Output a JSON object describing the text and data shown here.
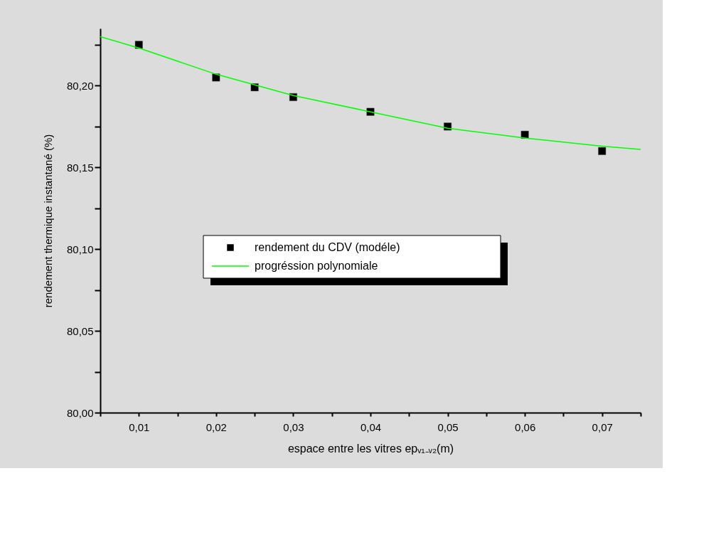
{
  "chart_data": {
    "type": "scatter",
    "xlabel": "espace entre les vitres epᵥ₁₋ᵥ₂(m)",
    "ylabel": "rendement  thermique instantané      (%)",
    "series": [
      {
        "name": "rendement du  CDV (modéle)",
        "color": "#000000",
        "marker": "square",
        "x": [
          0.01,
          0.02,
          0.025,
          0.03,
          0.04,
          0.05,
          0.06,
          0.07
        ],
        "values": [
          80.225,
          80.205,
          80.199,
          80.193,
          80.184,
          80.175,
          80.17,
          80.16
        ]
      },
      {
        "name": "progréssion polynomiale",
        "type": "line",
        "color": "#00ff00",
        "marker": "none",
        "line_style": "solid",
        "x": [
          0.005,
          0.01,
          0.02,
          0.03,
          0.04,
          0.05,
          0.06,
          0.07,
          0.075
        ],
        "values": [
          80.23,
          80.223,
          80.207,
          80.194,
          80.184,
          80.174,
          80.168,
          80.163,
          80.161
        ]
      }
    ],
    "xlim": [
      0.005,
      0.075
    ],
    "xticks": [
      {
        "value": 0.005,
        "label": null
      },
      {
        "value": 0.01,
        "label": "0,01"
      },
      {
        "value": 0.015,
        "label": null
      },
      {
        "value": 0.02,
        "label": "0,02"
      },
      {
        "value": 0.025,
        "label": null
      },
      {
        "value": 0.03,
        "label": "0,03"
      },
      {
        "value": 0.035,
        "label": null
      },
      {
        "value": 0.04,
        "label": "0,04"
      },
      {
        "value": 0.045,
        "label": null
      },
      {
        "value": 0.05,
        "label": "0,05"
      },
      {
        "value": 0.055,
        "label": null
      },
      {
        "value": 0.06,
        "label": "0,06"
      },
      {
        "value": 0.065,
        "label": null
      },
      {
        "value": 0.07,
        "label": "0,07"
      },
      {
        "value": 0.075,
        "label": null
      }
    ],
    "ylim": [
      80.0,
      80.235
    ],
    "yticks": [
      {
        "value": 80.0,
        "label": "80,00"
      },
      {
        "value": 80.025,
        "label": null
      },
      {
        "value": 80.05,
        "label": "80,05"
      },
      {
        "value": 80.075,
        "label": null
      },
      {
        "value": 80.1,
        "label": "80,10"
      },
      {
        "value": 80.125,
        "label": null
      },
      {
        "value": 80.15,
        "label": "80,15"
      },
      {
        "value": 80.175,
        "label": null
      },
      {
        "value": 80.2,
        "label": "80,20"
      },
      {
        "value": 80.225,
        "label": null
      }
    ],
    "grid": false,
    "legend": "center"
  }
}
